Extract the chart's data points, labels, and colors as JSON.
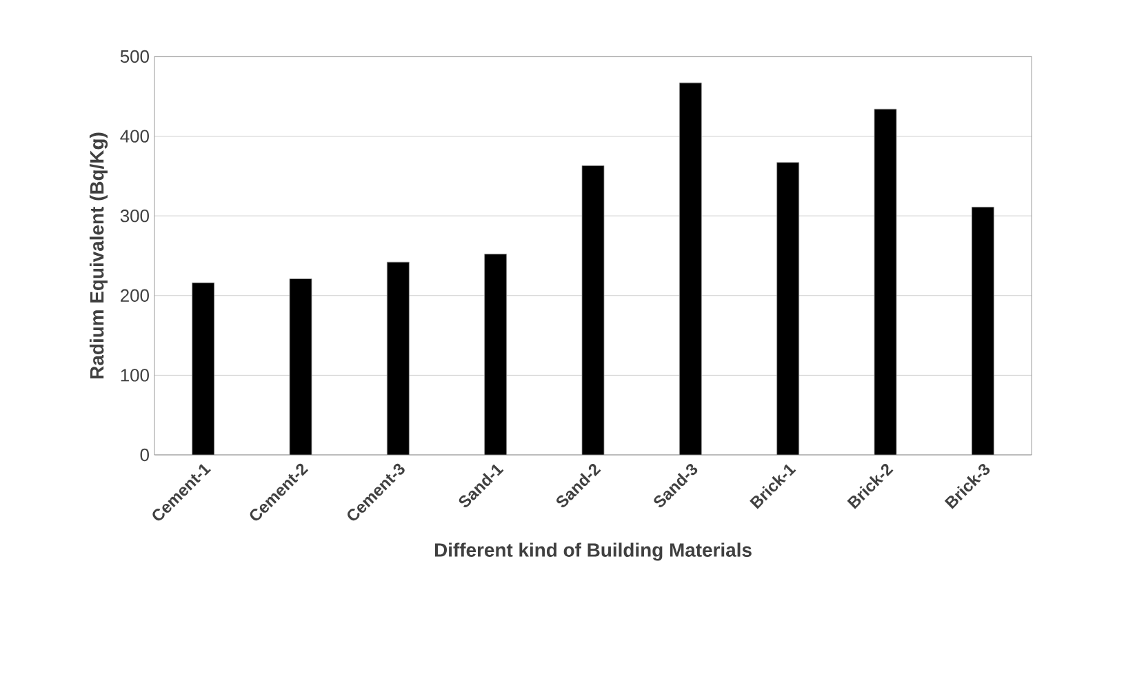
{
  "chart_data": {
    "type": "bar",
    "xlabel": "Different kind of Building Materials",
    "ylabel": "Radium Equivalent (Bq/Kg)",
    "categories": [
      "Cement-1",
      "Cement-2",
      "Cement-3",
      "Sand-1",
      "Sand-2",
      "Sand-3",
      "Brick-1",
      "Brick-2",
      "Brick-3"
    ],
    "values": [
      216,
      221,
      242,
      252,
      363,
      467,
      367,
      434,
      311
    ],
    "color": "#000000",
    "ylim": [
      0,
      500
    ],
    "yticks": [
      0,
      100,
      200,
      300,
      400,
      500
    ],
    "grid": "y"
  }
}
